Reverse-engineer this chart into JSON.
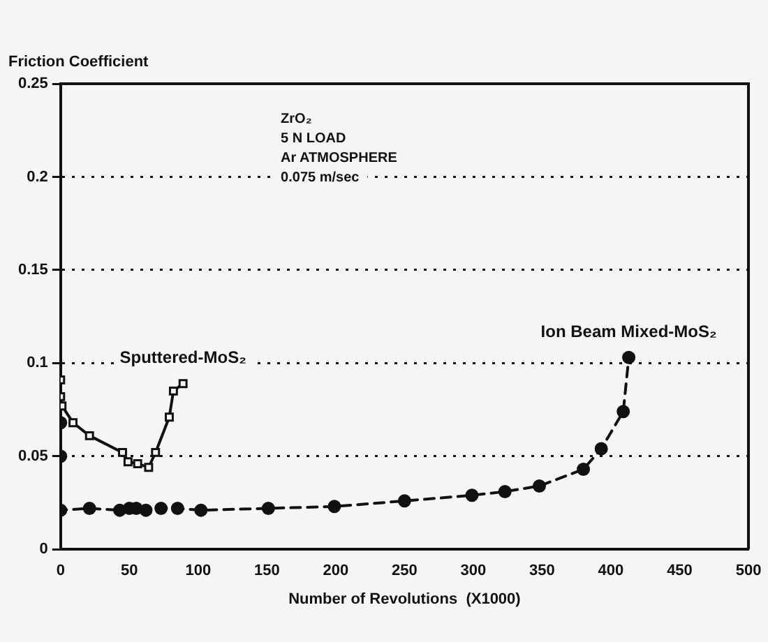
{
  "chart_data": {
    "type": "line",
    "xlabel": "Number of Revolutions  (X1000)",
    "ylabel": "Friction Coefficient",
    "annotations": [
      "ZrO₂",
      "5 N LOAD",
      "Ar ATMOSPHERE",
      "0.075 m/sec"
    ],
    "xlim": [
      0,
      500
    ],
    "xticks": [
      0,
      50,
      100,
      150,
      200,
      250,
      300,
      350,
      400,
      450,
      500
    ],
    "ylim": [
      0,
      0.25
    ],
    "yticks": [
      0,
      0.05,
      0.1,
      0.15,
      0.2,
      0.25
    ],
    "grid": "y",
    "legend": false,
    "series": [
      {
        "name": "Sputtered-MoS₂",
        "color": "#111111",
        "marker": "square",
        "line_style": "solid",
        "x": [
          0,
          0,
          1,
          9,
          21,
          45,
          49,
          56,
          64,
          69,
          79,
          82,
          89
        ],
        "values": [
          0.091,
          0.082,
          0.077,
          0.068,
          0.061,
          0.052,
          0.047,
          0.046,
          0.044,
          0.052,
          0.071,
          0.085,
          0.089
        ]
      },
      {
        "name": "Ion Beam Mixed-MoS₂",
        "color": "#111111",
        "marker": "circle",
        "line_style": "dashed",
        "x": [
          0,
          0,
          0,
          21,
          43,
          50,
          55,
          62,
          73,
          85,
          102,
          151,
          199,
          250,
          299,
          323,
          348,
          380,
          393,
          409,
          413
        ],
        "values": [
          0.068,
          0.05,
          0.021,
          0.022,
          0.021,
          0.022,
          0.022,
          0.021,
          0.022,
          0.022,
          0.021,
          0.022,
          0.023,
          0.026,
          0.029,
          0.031,
          0.034,
          0.043,
          0.054,
          0.074,
          0.103
        ]
      }
    ]
  }
}
